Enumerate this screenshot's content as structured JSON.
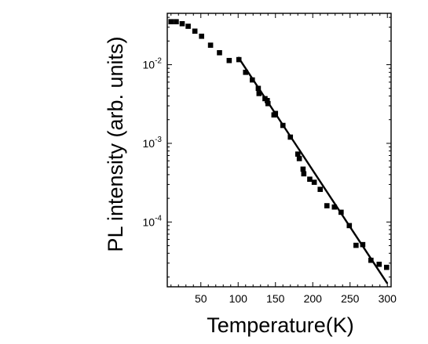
{
  "chart_data": {
    "type": "scatter",
    "title": "",
    "xlabel": "Temperature(K)",
    "ylabel": "PL intensity (arb. units)",
    "xlim": [
      5,
      305
    ],
    "ylim": [
      1.5e-05,
      0.045
    ],
    "y_scale": "log",
    "grid": false,
    "legend": "none",
    "x_ticks": [
      50,
      100,
      150,
      200,
      250,
      300
    ],
    "x_tick_labels": [
      "50",
      "100",
      "150",
      "200",
      "250",
      "300"
    ],
    "y_ticks": [
      {
        "value": 0.01,
        "base": "10",
        "exp": "-2"
      },
      {
        "value": 0.001,
        "base": "10",
        "exp": "-3"
      },
      {
        "value": 0.0001,
        "base": "10",
        "exp": "-4"
      }
    ],
    "series": [
      {
        "kind": "points",
        "marker": "square",
        "points": [
          [
            10,
            0.0352
          ],
          [
            17,
            0.0352
          ],
          [
            25,
            0.0332
          ],
          [
            33,
            0.0308
          ],
          [
            42,
            0.0267
          ],
          [
            51,
            0.023
          ],
          [
            63,
            0.0177
          ],
          [
            75,
            0.0142
          ],
          [
            88,
            0.0113
          ],
          [
            101,
            0.0116
          ],
          [
            110,
            0.008
          ],
          [
            119,
            0.0064
          ],
          [
            127,
            0.005
          ],
          [
            128,
            0.0043
          ],
          [
            136,
            0.0037
          ],
          [
            139,
            0.0035
          ],
          [
            140,
            0.0032
          ],
          [
            148,
            0.0023
          ],
          [
            150,
            0.0024
          ],
          [
            160,
            0.00169
          ],
          [
            170,
            0.0012
          ],
          [
            180,
            0.00073
          ],
          [
            182,
            0.00064
          ],
          [
            187,
            0.00047
          ],
          [
            188,
            0.00041
          ],
          [
            196,
            0.00035
          ],
          [
            202,
            0.00032
          ],
          [
            210,
            0.00026
          ],
          [
            219,
            0.000161
          ],
          [
            229,
            0.000155
          ],
          [
            238,
            0.000133
          ],
          [
            249,
            9e-05
          ],
          [
            258,
            5.05e-05
          ],
          [
            267,
            5.16e-05
          ],
          [
            278,
            3.26e-05
          ],
          [
            289,
            2.9e-05
          ],
          [
            299,
            2.65e-05
          ]
        ]
      },
      {
        "kind": "fit-line",
        "points": [
          [
            100,
            0.0125
          ],
          [
            300,
            1.65e-05
          ]
        ]
      }
    ],
    "colors": {
      "marks": "#000000",
      "background": "#ffffff"
    }
  }
}
